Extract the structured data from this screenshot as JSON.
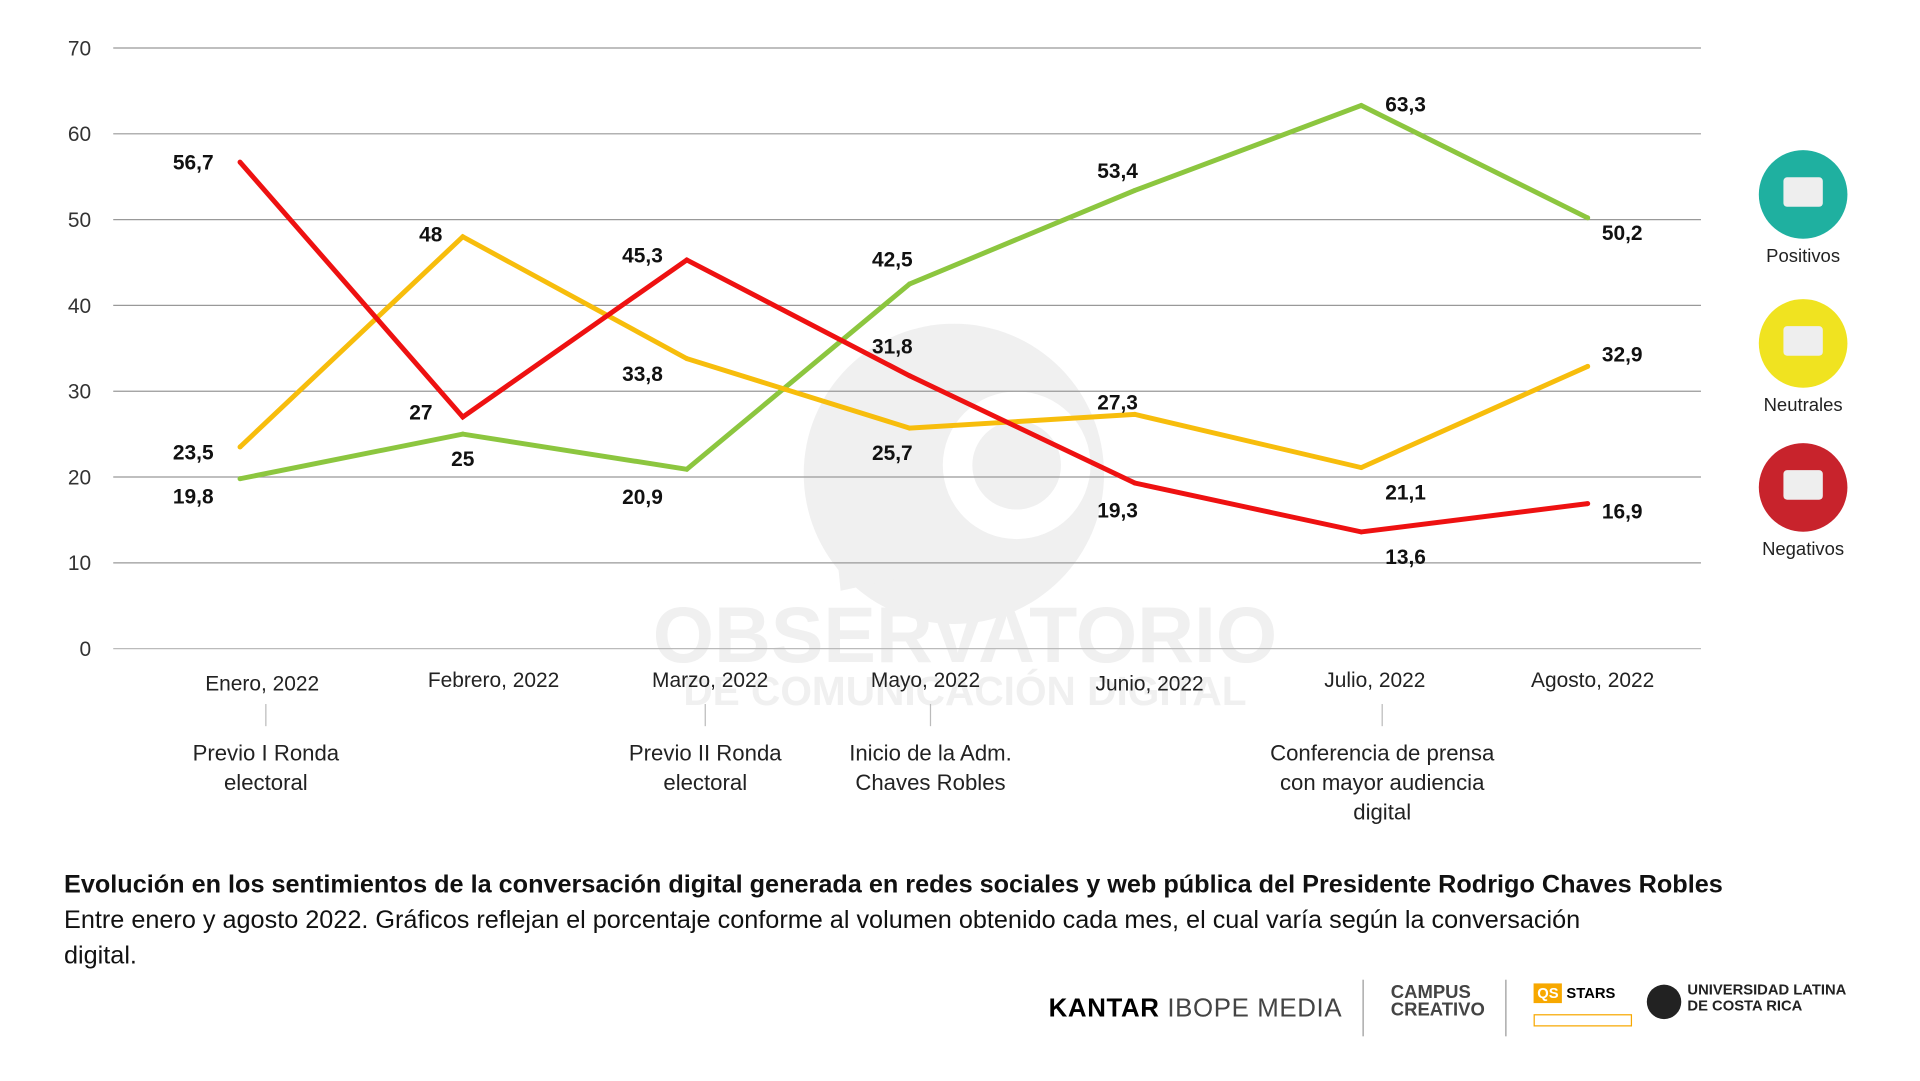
{
  "chart_data": {
    "type": "line",
    "title": "Evolución en los sentimientos de la conversación digital generada en redes sociales y web pública del Presidente Rodrigo Chaves Robles",
    "subtitle": "Entre enero y agosto 2022. Gráficos reflejan el porcentaje conforme al volumen obtenido cada mes, el cual varía según la conversación digital.",
    "categories": [
      "Enero, 2022",
      "Febrero, 2022",
      "Marzo, 2022",
      "Mayo, 2022",
      "Junio, 2022",
      "Julio, 2022",
      "Agosto, 2022"
    ],
    "ylim": [
      0,
      70
    ],
    "yticks": [
      0,
      10,
      20,
      30,
      40,
      50,
      60,
      70
    ],
    "grid": true,
    "legend_placement": "right",
    "series": [
      {
        "name": "Positivos",
        "color": "#8cc63f",
        "values": [
          19.8,
          25,
          20.9,
          42.5,
          53.4,
          63.3,
          50.2
        ],
        "labels": [
          "19,8",
          "25",
          "20,9",
          "42,5",
          "53,4",
          "63,3",
          "50,2"
        ]
      },
      {
        "name": "Neutrales",
        "color": "#f7bd0c",
        "values": [
          23.5,
          48,
          33.8,
          25.7,
          27.3,
          21.1,
          32.9
        ],
        "labels": [
          "23,5",
          "48",
          "33,8",
          "25,7",
          "27,3",
          "21,1",
          "32,9"
        ]
      },
      {
        "name": "Negativos",
        "color": "#ee1111",
        "values": [
          56.7,
          27,
          45.3,
          31.8,
          19.3,
          13.6,
          16.9
        ],
        "labels": [
          "56,7",
          "27",
          "45,3",
          "31,8",
          "19,3",
          "13,6",
          "16,9"
        ]
      }
    ],
    "annotations": [
      {
        "category": "Enero, 2022",
        "lines": [
          "Previo I Ronda",
          "electoral"
        ]
      },
      {
        "category": "Marzo, 2022",
        "lines": [
          "Previo II Ronda",
          "electoral"
        ]
      },
      {
        "category": "Mayo, 2022",
        "lines": [
          "Inicio de la Adm.",
          "Chaves Robles"
        ]
      },
      {
        "category": "Julio, 2022",
        "lines": [
          "Conferencia de prensa",
          "con mayor audiencia",
          "digital"
        ]
      }
    ]
  },
  "legend": {
    "items": [
      {
        "label": "Positivos",
        "color": "#1fb0a0"
      },
      {
        "label": "Neutrales",
        "color": "#f0e320"
      },
      {
        "label": "Negativos",
        "color": "#c8232c"
      }
    ]
  },
  "watermark": {
    "line1": "OBSERVATORIO",
    "line2": "DE COMUNICACIÓN DIGITAL"
  },
  "logos": {
    "kantar": "KANTAR",
    "ibope": "IBOPE MEDIA",
    "campus1": "CAMPUS",
    "campus2": "CREATIVO",
    "qs": "STARS",
    "uni1": "UNIVERSIDAD LATINA",
    "uni2": "DE COSTA RICA"
  }
}
